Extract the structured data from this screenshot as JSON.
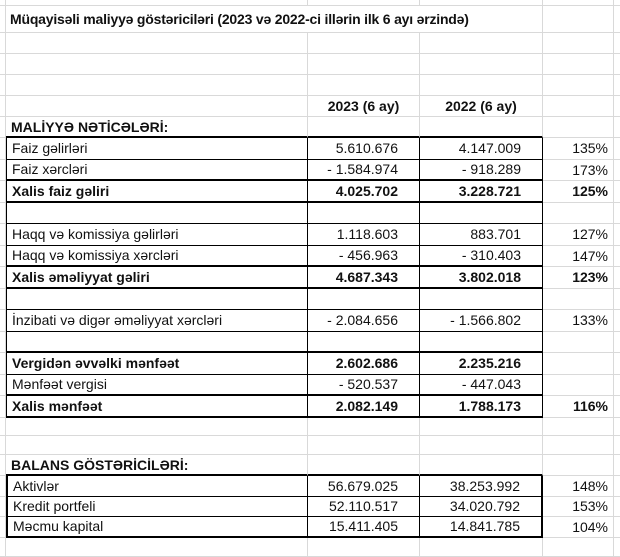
{
  "title": "Müqayisəli maliyyə göstəriciləri (2023 və 2022-ci illərin ilk 6 ayı ərzində)",
  "col_headers": {
    "y2023": "2023 (6 ay)",
    "y2022": "2022 (6 ay)"
  },
  "sections": {
    "maliyye": "MALİYYƏ NƏTİCƏLƏRİ:",
    "balans": "BALANS GÖSTƏRİCİLƏRİ:"
  },
  "rows": {
    "faiz_gelirleri": {
      "label": "Faiz gəlirləri",
      "v2023": "5.610.676",
      "v2022": "4.147.009",
      "pct": "135%"
    },
    "faiz_xercleri": {
      "label": "Faiz xərcləri",
      "v2023": "- 1.584.974",
      "v2022": "- 918.289",
      "pct": "173%"
    },
    "xalis_faiz_geliri": {
      "label": "Xalis faiz gəliri",
      "v2023": "4.025.702",
      "v2022": "3.228.721",
      "pct": "125%"
    },
    "haqq_gelirleri": {
      "label": "Haqq və komissiya gəlirləri",
      "v2023": "1.118.603",
      "v2022": "883.701",
      "pct": "127%"
    },
    "haqq_xercleri": {
      "label": "Haqq və komissiya xərcləri",
      "v2023": "- 456.963",
      "v2022": "- 310.403",
      "pct": "147%"
    },
    "xalis_emeliyyat_geliri": {
      "label": "Xalis əməliyyat gəliri",
      "v2023": "4.687.343",
      "v2022": "3.802.018",
      "pct": "123%"
    },
    "inzibati_xercler": {
      "label": "İnzibati və digər əməliyyat xərcləri",
      "v2023": "- 2.084.656",
      "v2022": "- 1.566.802",
      "pct": "133%"
    },
    "vergiden_evvelki_menfeet": {
      "label": "Vergidən əvvəlki mənfəət",
      "v2023": "2.602.686",
      "v2022": "2.235.216",
      "pct": ""
    },
    "menfeet_vergisi": {
      "label": "Mənfəət vergisi",
      "v2023": "- 520.537",
      "v2022": "- 447.043",
      "pct": ""
    },
    "xalis_menfeet": {
      "label": "Xalis mənfəət",
      "v2023": "2.082.149",
      "v2022": "1.788.173",
      "pct": "116%"
    },
    "aktivler": {
      "label": "Aktivlər",
      "v2023": "56.679.025",
      "v2022": "38.253.992",
      "pct": "148%"
    },
    "kredit_portfeli": {
      "label": "Kredit portfeli",
      "v2023": "52.110.517",
      "v2022": "34.020.792",
      "pct": "153%"
    },
    "mecmu_kapital": {
      "label": "Məcmu kapital",
      "v2023": "15.411.405",
      "v2022": "14.841.785",
      "pct": "104%"
    }
  },
  "colors": {
    "background": "#ffffff",
    "grid_line": "#d9d9d9",
    "table_border": "#000000",
    "text": "#111111"
  }
}
